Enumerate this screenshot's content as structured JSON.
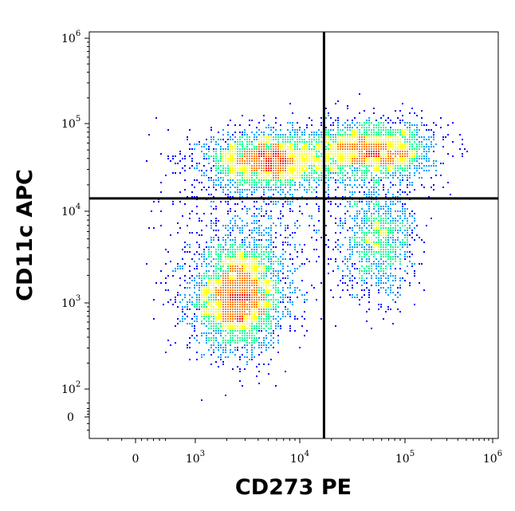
{
  "chart_data": {
    "type": "scatter",
    "subtype": "flow-cytometry-density-dot-plot",
    "xlabel": "CD273 PE",
    "ylabel": "CD11c APC",
    "x_scale": "biexponential",
    "y_scale": "biexponential",
    "xlim": [
      -300,
      1200000
    ],
    "ylim": [
      -30,
      1200000
    ],
    "x_ticks": [
      {
        "value": 0,
        "base": "0",
        "exp": ""
      },
      {
        "value": 1000,
        "base": "10",
        "exp": "3"
      },
      {
        "value": 10000,
        "base": "10",
        "exp": "4"
      },
      {
        "value": 100000,
        "base": "10",
        "exp": "5"
      },
      {
        "value": 1000000,
        "base": "10",
        "exp": "6"
      }
    ],
    "y_ticks": [
      {
        "value": 0,
        "base": "0",
        "exp": ""
      },
      {
        "value": 100,
        "base": "10",
        "exp": "2"
      },
      {
        "value": 1000,
        "base": "10",
        "exp": "3"
      },
      {
        "value": 10000,
        "base": "10",
        "exp": "4"
      },
      {
        "value": 100000,
        "base": "10",
        "exp": "5"
      },
      {
        "value": 1000000,
        "base": "10",
        "exp": "6"
      }
    ],
    "quadrant_gate": {
      "x": 17000,
      "y": 14000
    },
    "populations": [
      {
        "center": [
          2500,
          1200
        ],
        "spread": [
          0.22,
          0.3
        ],
        "count": 3200,
        "peak_density": "high"
      },
      {
        "center": [
          5000,
          38000
        ],
        "spread": [
          0.3,
          0.17
        ],
        "count": 2400,
        "peak_density": "medium"
      },
      {
        "center": [
          50000,
          50000
        ],
        "spread": [
          0.3,
          0.17
        ],
        "count": 2200,
        "peak_density": "medium"
      },
      {
        "center": [
          55000,
          5000
        ],
        "spread": [
          0.18,
          0.32
        ],
        "count": 1100,
        "peak_density": "low"
      },
      {
        "center": [
          4000,
          6000
        ],
        "spread": [
          0.45,
          0.55
        ],
        "count": 700,
        "peak_density": "low"
      }
    ],
    "density_colors": [
      "#0000ff",
      "#00a0ff",
      "#00ff90",
      "#ffff00",
      "#ff8000",
      "#ff0000"
    ],
    "grid": false,
    "legend": "none"
  }
}
